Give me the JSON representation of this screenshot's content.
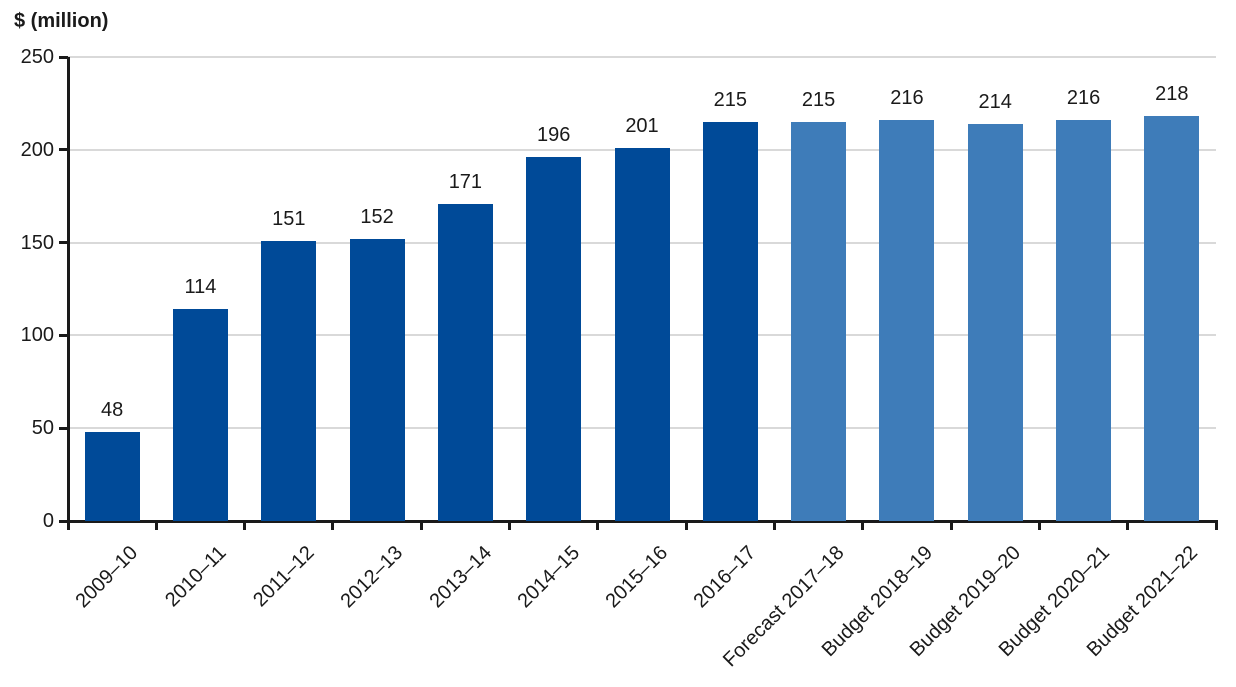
{
  "figure": {
    "background_color": "#FFFFFF"
  },
  "chart_data": {
    "type": "bar",
    "title": "",
    "xlabel": "",
    "ylabel": "$ (million)",
    "categories": [
      "2009–10",
      "2010–11",
      "2011–12",
      "2012–13",
      "2013–14",
      "2014–15",
      "2015–16",
      "2016–17",
      "Forecast 2017–18",
      "Budget 2018–19",
      "Budget 2019–20",
      "Budget 2020–21",
      "Budget 2021–22"
    ],
    "values": [
      48,
      114,
      151,
      152,
      171,
      196,
      201,
      215,
      215,
      216,
      214,
      216,
      218
    ],
    "bar_styles": [
      "actual",
      "actual",
      "actual",
      "actual",
      "actual",
      "actual",
      "actual",
      "actual",
      "forecast",
      "forecast",
      "forecast",
      "forecast",
      "forecast"
    ],
    "bar_palette": {
      "actual": "#004A98",
      "forecast": "#3E7CB9"
    },
    "ylim": [
      0,
      250
    ],
    "yticks": [
      0,
      50,
      100,
      150,
      200,
      250
    ],
    "grid": true,
    "gridline_color": "#D9D9D9",
    "axis_color": "#1A1A1A",
    "text_color": "#1A1A1A",
    "legend": "none",
    "value_labels_shown": true,
    "x_label_rotation_deg": -45
  }
}
